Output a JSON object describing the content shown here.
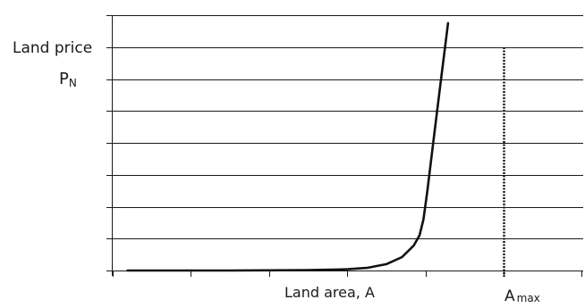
{
  "chart_data": {
    "type": "line",
    "ylabel": "Land price",
    "y_symbol": "P",
    "y_symbol_subscript": "N",
    "xlabel": "Land area, A",
    "vline_label": "A",
    "vline_label_subscript": "max",
    "xlim": [
      0,
      10
    ],
    "ylim": [
      0,
      8
    ],
    "vline_x": 10.0,
    "gridlines_y": [
      0,
      1,
      2,
      3,
      4,
      5,
      6,
      7,
      8
    ],
    "x_ticks": [
      0,
      2,
      4,
      6,
      8,
      10
    ],
    "series": [
      {
        "values": [
          [
            0.38,
            0.0
          ],
          [
            3.0,
            0.0
          ],
          [
            5.0,
            0.01
          ],
          [
            6.0,
            0.04
          ],
          [
            6.5,
            0.08
          ],
          [
            7.0,
            0.2
          ],
          [
            7.4,
            0.42
          ],
          [
            7.7,
            0.78
          ],
          [
            7.85,
            1.1
          ],
          [
            7.95,
            1.6
          ],
          [
            8.05,
            2.5
          ],
          [
            8.2,
            4.0
          ],
          [
            8.38,
            5.8
          ],
          [
            8.58,
            7.75
          ]
        ]
      }
    ]
  }
}
